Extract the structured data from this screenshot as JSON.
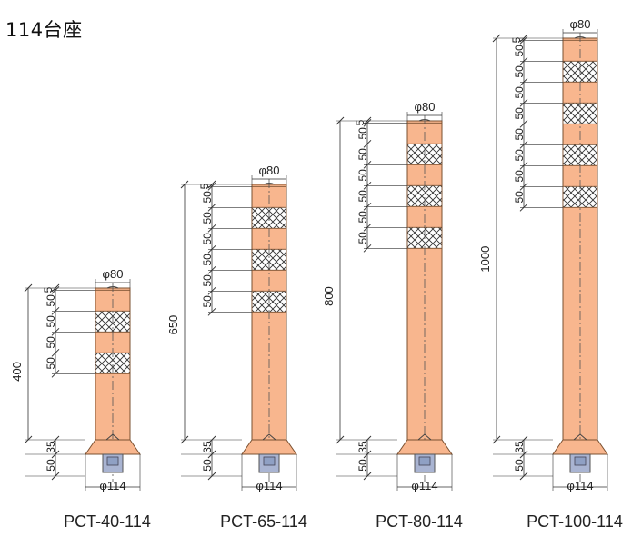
{
  "title": "114台座",
  "colors": {
    "post_body": "#f8b68e",
    "post_outline": "#7a5030",
    "reflective_band": "#ffffff",
    "band_hatch": "#333333",
    "base_adapter": "#a9b4d2",
    "dimension_line": "#333333"
  },
  "shared_labels": {
    "top_diameter": "φ80",
    "base_diameter": "φ114",
    "cap_height": "5",
    "segment_height": "50",
    "base_height": "35",
    "anchor_height": "50"
  },
  "posts": [
    {
      "model": "PCT-40-114",
      "height": 400,
      "band_count": 2
    },
    {
      "model": "PCT-65-114",
      "height": 650,
      "band_count": 3
    },
    {
      "model": "PCT-80-114",
      "height": 800,
      "band_count": 3
    },
    {
      "model": "PCT-100-114",
      "height": 1000,
      "band_count": 4
    }
  ]
}
